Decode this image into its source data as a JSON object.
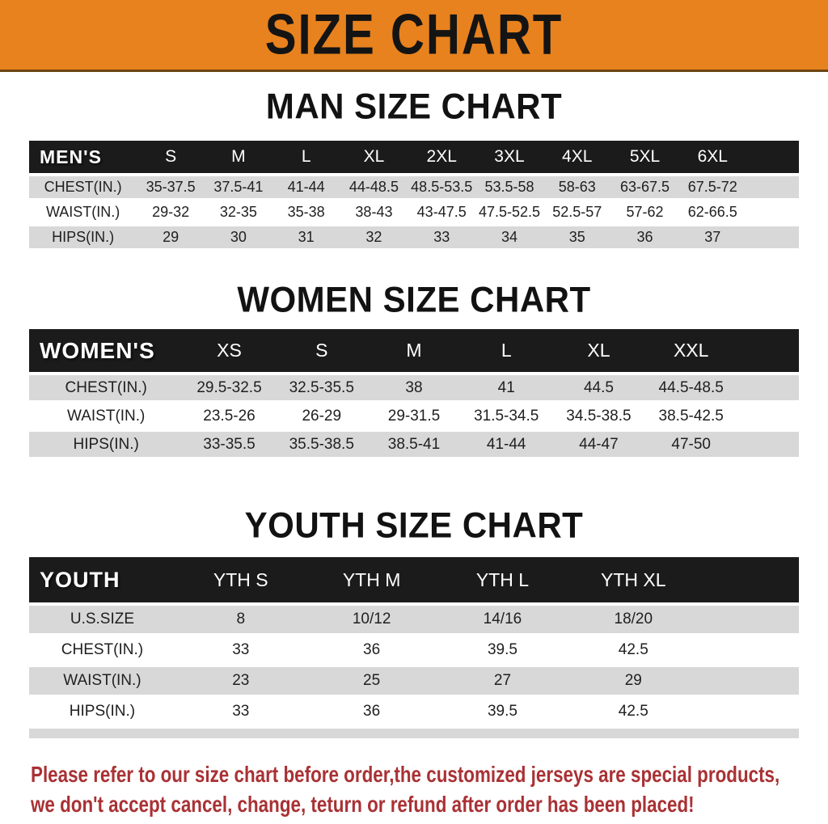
{
  "banner": {
    "title": "SIZE CHART",
    "bg_color": "#e8821e",
    "text_color": "#141414"
  },
  "sections": [
    {
      "heading": "MAN SIZE CHART",
      "table": {
        "corner_label": "MEN'S",
        "columns": [
          "S",
          "M",
          "L",
          "XL",
          "2XL",
          "3XL",
          "4XL",
          "5XL",
          "6XL"
        ],
        "rows": [
          {
            "label": "CHEST(IN.)",
            "values": [
              "35-37.5",
              "37.5-41",
              "41-44",
              "44-48.5",
              "48.5-53.5",
              "53.5-58",
              "58-63",
              "63-67.5",
              "67.5-72"
            ]
          },
          {
            "label": "WAIST(IN.)",
            "values": [
              "29-32",
              "32-35",
              "35-38",
              "38-43",
              "43-47.5",
              "47.5-52.5",
              "52.5-57",
              "57-62",
              "62-66.5"
            ]
          },
          {
            "label": "HIPS(IN.)",
            "values": [
              "29",
              "30",
              "31",
              "32",
              "33",
              "34",
              "35",
              "36",
              "37"
            ]
          }
        ]
      }
    },
    {
      "heading": "WOMEN SIZE CHART",
      "table": {
        "corner_label": "WOMEN'S",
        "columns": [
          "XS",
          "S",
          "M",
          "L",
          "XL",
          "XXL"
        ],
        "rows": [
          {
            "label": "CHEST(IN.)",
            "values": [
              "29.5-32.5",
              "32.5-35.5",
              "38",
              "41",
              "44.5",
              "44.5-48.5"
            ]
          },
          {
            "label": "WAIST(IN.)",
            "values": [
              "23.5-26",
              "26-29",
              "29-31.5",
              "31.5-34.5",
              "34.5-38.5",
              "38.5-42.5"
            ]
          },
          {
            "label": "HIPS(IN.)",
            "values": [
              "33-35.5",
              "35.5-38.5",
              "38.5-41",
              "41-44",
              "44-47",
              "47-50"
            ]
          }
        ]
      }
    },
    {
      "heading": "YOUTH SIZE CHART",
      "table": {
        "corner_label": "YOUTH",
        "columns": [
          "YTH S",
          "YTH M",
          "YTH L",
          "YTH XL"
        ],
        "rows": [
          {
            "label": "U.S.SIZE",
            "values": [
              "8",
              "10/12",
              "14/16",
              "18/20"
            ]
          },
          {
            "label": "CHEST(IN.)",
            "values": [
              "33",
              "36",
              "39.5",
              "42.5"
            ]
          },
          {
            "label": "WAIST(IN.)",
            "values": [
              "23",
              "25",
              "27",
              "29"
            ]
          },
          {
            "label": "HIPS(IN.)",
            "values": [
              "33",
              "36",
              "39.5",
              "42.5"
            ]
          }
        ]
      }
    }
  ],
  "footer": {
    "line1": "Please refer to our size chart before order,the customized jerseys are special products,",
    "line2": "we don't accept cancel, change, teturn or refund after order has been placed!",
    "text_color": "#a93134"
  },
  "colors": {
    "header_bar_bg": "#1b1b1b",
    "header_bar_text": "#ffffff",
    "row_alt_bg": "#d8d8d8",
    "row_bg": "#ffffff",
    "cell_text": "#1f1f1f"
  }
}
